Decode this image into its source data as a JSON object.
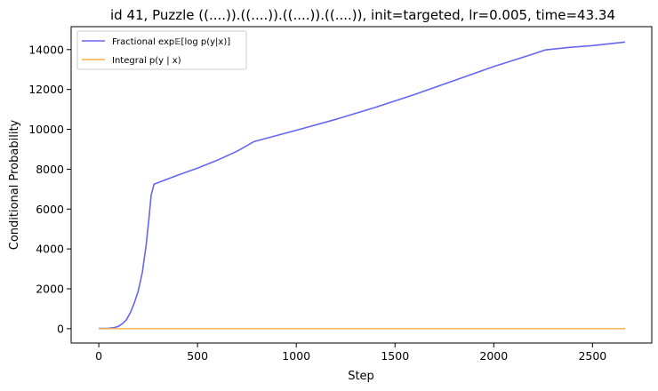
{
  "chart_data": {
    "type": "line",
    "title": "id 41, Puzzle ((....)).((....)).((....)).((....)), init=targeted, lr=0.005, time=43.34",
    "xlabel": "Step",
    "ylabel": "Conditional Probability",
    "xlim": [
      -140,
      2800
    ],
    "ylim": [
      -720,
      15150
    ],
    "xticks": [
      0,
      500,
      1000,
      1500,
      2000,
      2500
    ],
    "yticks": [
      0,
      2000,
      4000,
      6000,
      8000,
      10000,
      12000,
      14000
    ],
    "legend_position": "top-left",
    "grid": false,
    "series": [
      {
        "name": "Fractional exp𝔼[log p(y|x)]",
        "color": "#6666ee",
        "x": [
          0,
          50,
          80,
          100,
          120,
          140,
          160,
          180,
          200,
          220,
          240,
          255,
          265,
          280,
          400,
          500,
          600,
          700,
          785,
          1000,
          1200,
          1400,
          1600,
          1800,
          2000,
          2200,
          2260,
          2370,
          2500,
          2665
        ],
        "y": [
          10,
          20,
          60,
          120,
          250,
          450,
          800,
          1300,
          1900,
          2800,
          4200,
          5600,
          6700,
          7250,
          7700,
          8050,
          8450,
          8900,
          9380,
          9950,
          10500,
          11100,
          11750,
          12450,
          13150,
          13780,
          13980,
          14100,
          14200,
          14380
        ]
      },
      {
        "name": "Integral p(y | x)",
        "color": "#f5b042",
        "x": [
          0,
          2665
        ],
        "y": [
          0,
          0
        ]
      }
    ]
  }
}
